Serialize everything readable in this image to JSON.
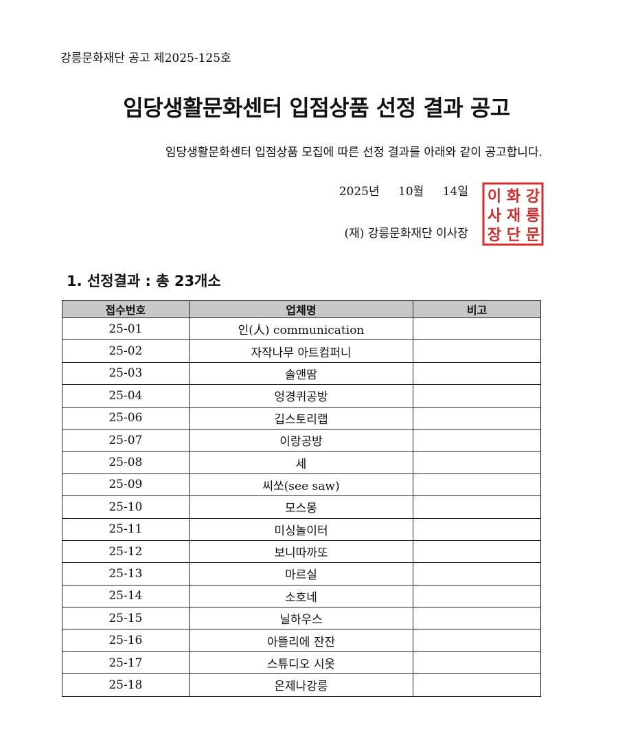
{
  "doc_number": "강릉문화재단 공고 제2025-125호",
  "title": "임당생활문화센터 입점상품 선정 결과 공고",
  "intro": "임당생활문화센터 입점상품 모집에 따른 선정 결과를 아래와 같이 공고합니다.",
  "date": "2025년 10월 14일",
  "issuer": "(재) 강릉문화재단 이사장",
  "seal": {
    "text": "강릉문화재단이사장인",
    "color": "#d42a2a"
  },
  "section_heading": "1. 선정결과 : 총 23개소",
  "table": {
    "headers": [
      "접수번호",
      "업체명",
      "비고"
    ],
    "rows": [
      [
        "25-01",
        "인(人) communication",
        ""
      ],
      [
        "25-02",
        "자작나무 아트컴퍼니",
        ""
      ],
      [
        "25-03",
        "솔앤땀",
        ""
      ],
      [
        "25-04",
        "엉경퀴공방",
        ""
      ],
      [
        "25-06",
        "깁스토리랩",
        ""
      ],
      [
        "25-07",
        "이랑공방",
        ""
      ],
      [
        "25-08",
        "세",
        ""
      ],
      [
        "25-09",
        "씨쏘(see saw)",
        ""
      ],
      [
        "25-10",
        "모스몽",
        ""
      ],
      [
        "25-11",
        "미싱놀이터",
        ""
      ],
      [
        "25-12",
        "보니따까또",
        ""
      ],
      [
        "25-13",
        "마르실",
        ""
      ],
      [
        "25-14",
        "소호네",
        ""
      ],
      [
        "25-15",
        "닐하우스",
        ""
      ],
      [
        "25-16",
        "아뜰리에 잔잔",
        ""
      ],
      [
        "25-17",
        "스튜디오 시옷",
        ""
      ],
      [
        "25-18",
        "온제나강릉",
        ""
      ]
    ]
  }
}
